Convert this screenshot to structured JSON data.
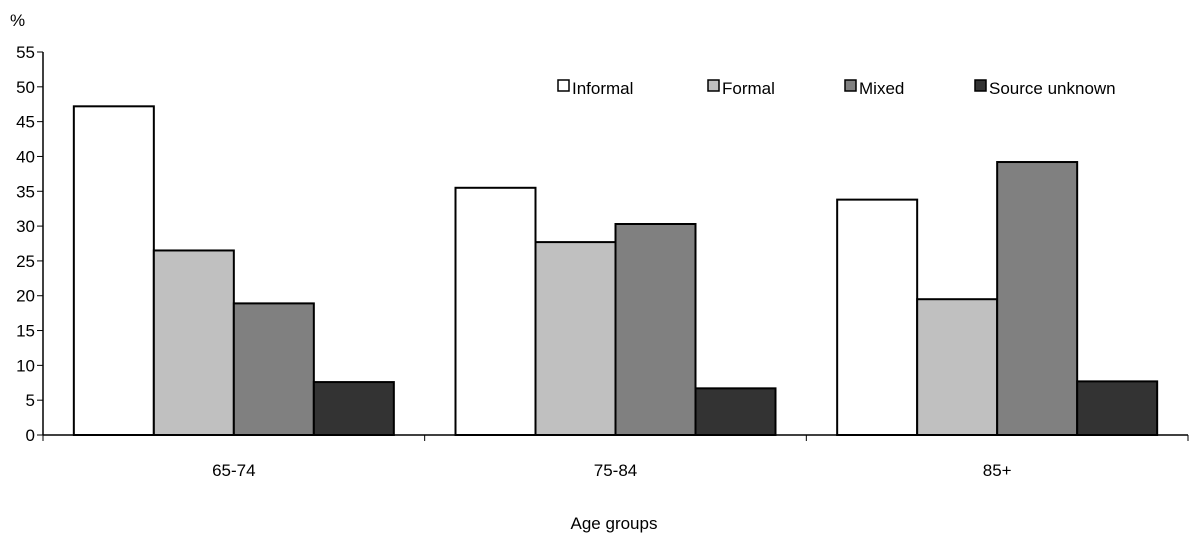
{
  "chart_data": {
    "type": "bar",
    "title": "",
    "ylabel": "%",
    "xlabel": "Age groups",
    "categories": [
      "65-74",
      "75-84",
      "85+"
    ],
    "ylim": [
      0,
      55
    ],
    "yticks": [
      0,
      5,
      10,
      15,
      20,
      25,
      30,
      35,
      40,
      45,
      50,
      55
    ],
    "grid": false,
    "legend_position": "top-right",
    "series": [
      {
        "name": "Informal",
        "color": "#ffffff",
        "values": [
          47.2,
          35.5,
          33.8
        ]
      },
      {
        "name": "Formal",
        "color": "#c0c0c0",
        "values": [
          26.5,
          27.7,
          19.5
        ]
      },
      {
        "name": "Mixed",
        "color": "#808080",
        "values": [
          18.9,
          30.3,
          39.2
        ]
      },
      {
        "name": "Source unknown",
        "color": "#333333",
        "values": [
          7.6,
          6.7,
          7.7
        ]
      }
    ]
  }
}
